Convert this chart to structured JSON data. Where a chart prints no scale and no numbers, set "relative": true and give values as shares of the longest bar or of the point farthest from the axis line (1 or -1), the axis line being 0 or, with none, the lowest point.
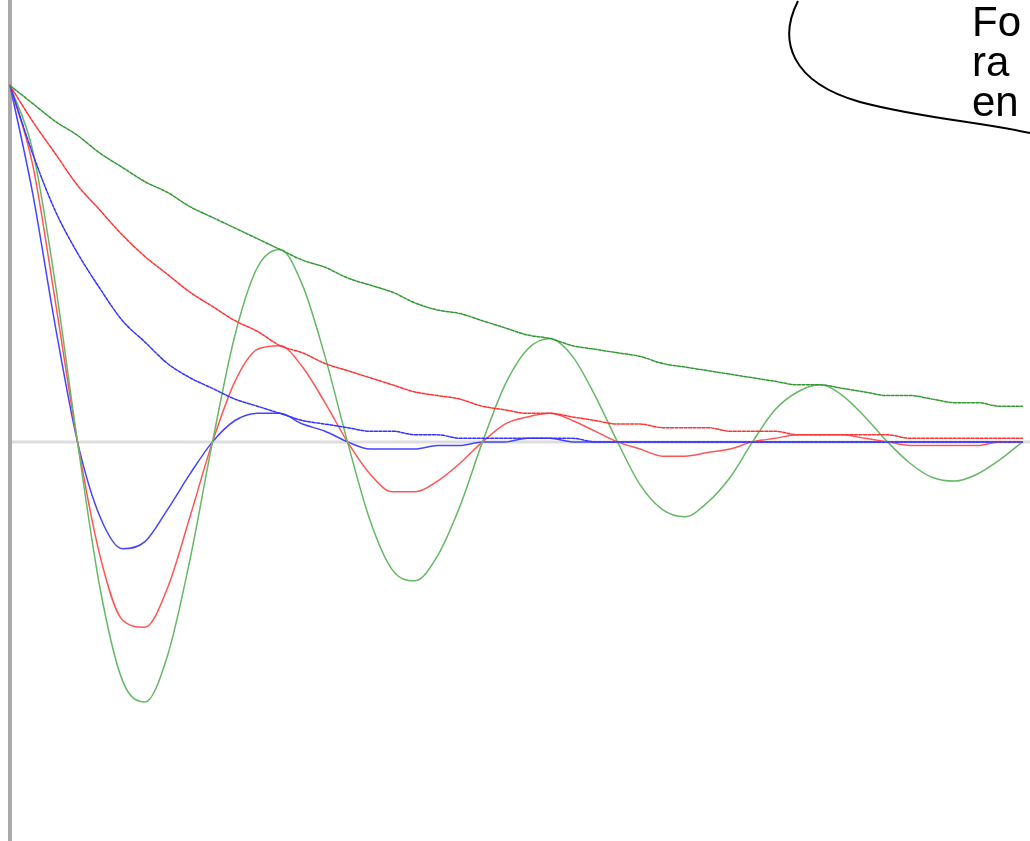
{
  "chart_data": {
    "type": "line",
    "relative": true,
    "legend": false,
    "marker": "none",
    "categories": [
      null,
      null,
      null,
      null,
      null,
      null,
      null,
      null,
      null,
      null,
      null,
      null,
      null,
      null,
      null,
      null,
      null,
      null,
      null,
      null,
      null,
      null,
      null,
      null,
      null,
      null,
      null,
      null,
      null,
      null,
      null,
      null,
      null,
      null,
      null,
      null,
      null,
      null,
      null,
      null,
      null,
      null,
      null,
      null,
      null,
      null
    ],
    "annotations": [
      "Fo\nra\nen"
    ],
    "series": [
      {
        "color": "#339933",
        "line_style": "dashed",
        "values": [
          1,
          0.95,
          0.9,
          0.86,
          0.81,
          0.77,
          0.73,
          0.7,
          0.66,
          0.63,
          0.6,
          0.57,
          0.54,
          0.51,
          0.49,
          0.46,
          0.44,
          0.42,
          0.39,
          0.37,
          0.36,
          0.34,
          0.32,
          0.3,
          0.29,
          0.27,
          0.26,
          0.25,
          0.24,
          0.22,
          0.21,
          0.2,
          0.19,
          0.18,
          0.17,
          0.16,
          0.16,
          0.15,
          0.14,
          0.13,
          0.13,
          0.12,
          0.11,
          0.11,
          0.1,
          0.1
        ]
      },
      {
        "color": "#66b866",
        "line_style": "solid",
        "values": [
          1,
          0.82,
          0.45,
          0,
          -0.41,
          -0.67,
          -0.73,
          -0.6,
          -0.33,
          0,
          0.3,
          0.49,
          0.54,
          0.44,
          0.24,
          0,
          -0.22,
          -0.36,
          -0.39,
          -0.32,
          -0.18,
          0,
          0.16,
          0.26,
          0.29,
          0.24,
          0.13,
          0,
          -0.12,
          -0.19,
          -0.21,
          -0.17,
          -0.1,
          0,
          0.09,
          0.14,
          0.16,
          0.13,
          0.07,
          0,
          -0.06,
          -0.1,
          -0.11,
          -0.09,
          -0.05,
          0
        ]
      },
      {
        "color": "#ff3333",
        "line_style": "dashed",
        "values": [
          1,
          0.9,
          0.81,
          0.72,
          0.65,
          0.58,
          0.52,
          0.47,
          0.42,
          0.38,
          0.34,
          0.31,
          0.27,
          0.25,
          0.22,
          0.2,
          0.18,
          0.16,
          0.14,
          0.13,
          0.12,
          0.1,
          0.09,
          0.08,
          0.08,
          0.07,
          0.06,
          0.05,
          0.05,
          0.04,
          0.04,
          0.04,
          0.03,
          0.03,
          0.03,
          0.02,
          0.02,
          0.02,
          0.02,
          0.02,
          0.01,
          0.01,
          0.01,
          0.01,
          0.01,
          0.01
        ]
      },
      {
        "color": "#ff5555",
        "line_style": "solid",
        "values": [
          1,
          0.78,
          0.4,
          0,
          -0.32,
          -0.5,
          -0.52,
          -0.41,
          -0.21,
          0,
          0.17,
          0.26,
          0.27,
          0.21,
          0.11,
          0,
          -0.09,
          -0.14,
          -0.14,
          -0.11,
          -0.06,
          0,
          0.05,
          0.07,
          0.08,
          0.06,
          0.03,
          0,
          -0.02,
          -0.04,
          -0.04,
          -0.03,
          -0.02,
          0,
          0.01,
          0.02,
          0.02,
          0.02,
          0.01,
          0,
          -0.01,
          -0.01,
          -0.01,
          -0.01,
          0,
          0
        ]
      },
      {
        "color": "#3333ff",
        "line_style": "dashed",
        "values": [
          1,
          0.81,
          0.65,
          0.53,
          0.43,
          0.34,
          0.28,
          0.22,
          0.18,
          0.15,
          0.12,
          0.1,
          0.08,
          0.06,
          0.05,
          0.04,
          0.03,
          0.03,
          0.02,
          0.02,
          0.01,
          0.01,
          0.01,
          0.01,
          0.01,
          0.01,
          0,
          0,
          0,
          0,
          0,
          0,
          0,
          0,
          0,
          0,
          0,
          0,
          0,
          0,
          0,
          0,
          0,
          0,
          0,
          0
        ]
      },
      {
        "color": "#4444ff",
        "line_style": "solid",
        "values": [
          1,
          0.7,
          0.33,
          0,
          -0.21,
          -0.3,
          -0.28,
          -0.19,
          -0.09,
          0,
          0.06,
          0.08,
          0.08,
          0.05,
          0.03,
          0,
          -0.02,
          -0.02,
          -0.02,
          -0.01,
          -0.01,
          0,
          0,
          0.01,
          0.01,
          0,
          0,
          0,
          0,
          0,
          0,
          0,
          0,
          0,
          0,
          0,
          0,
          0,
          0,
          0,
          0,
          0,
          0,
          0,
          0,
          0
        ]
      }
    ]
  }
}
